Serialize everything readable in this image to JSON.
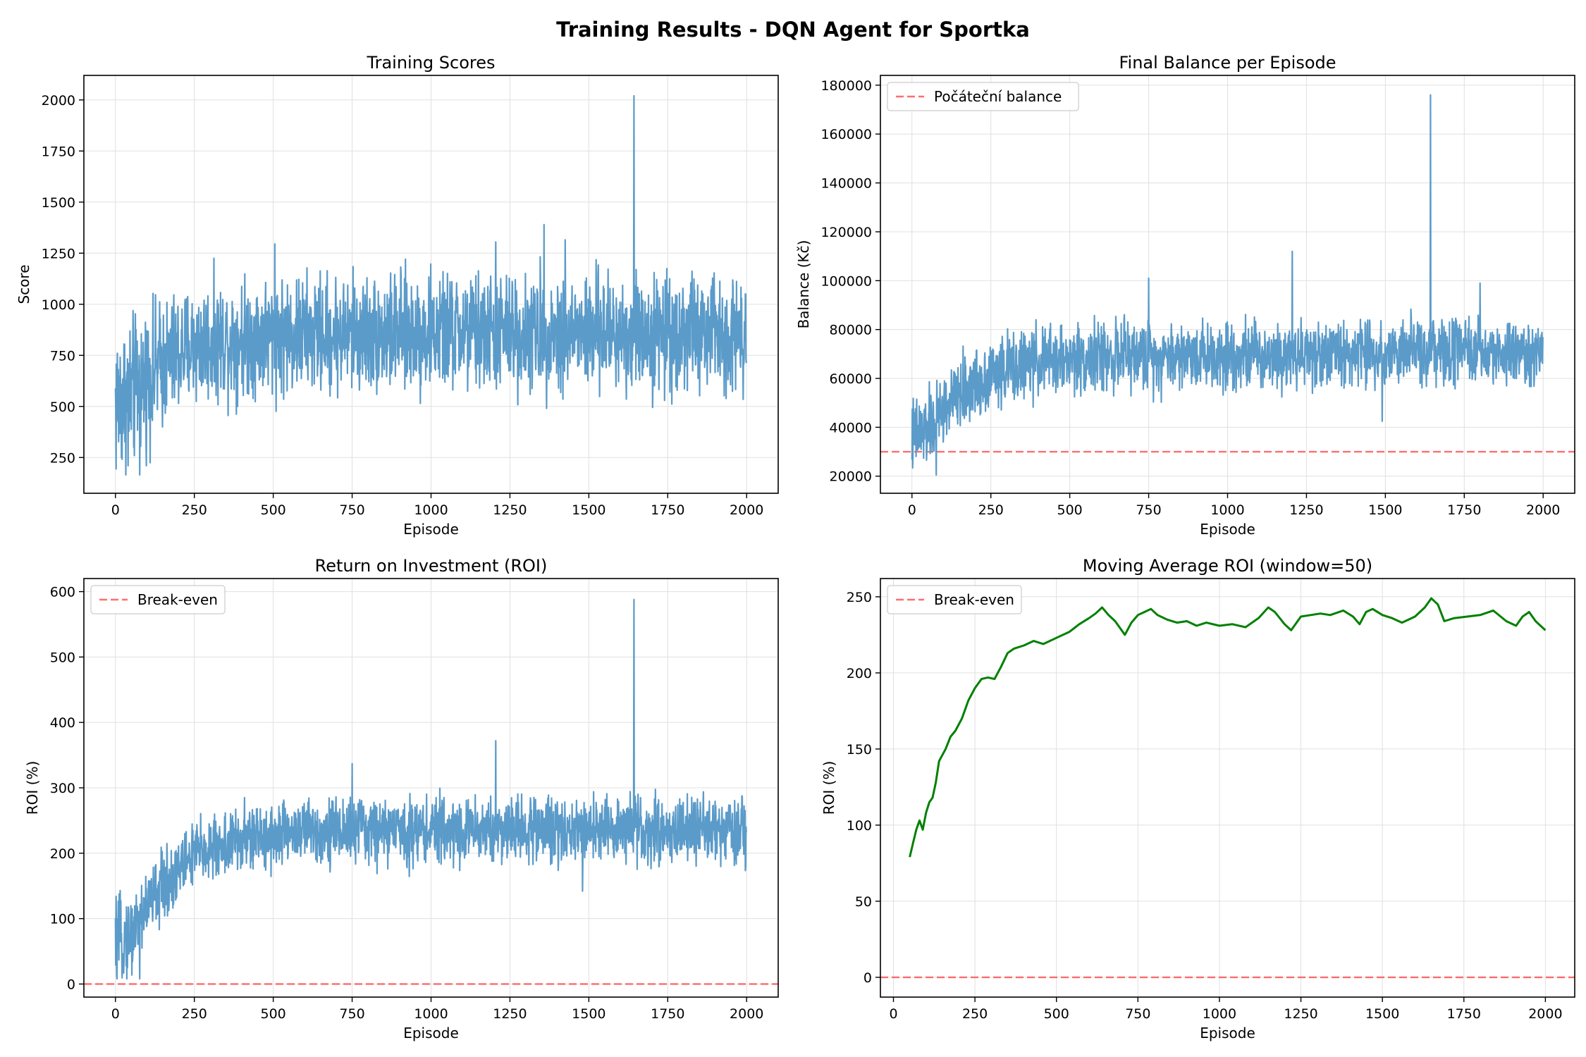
{
  "figure": {
    "title": "Training Results - DQN Agent for Sportka"
  },
  "colors": {
    "series": "#5b9bc9",
    "reference": "#ff5555",
    "moving_average": "#008000",
    "grid": "#e0e0e0"
  },
  "chart_data": [
    {
      "type": "line",
      "title": "Training Scores",
      "xlabel": "Episode",
      "ylabel": "Score",
      "xlim": [
        -100,
        2100
      ],
      "ylim": [
        75,
        2120
      ],
      "xticks": [
        0,
        250,
        500,
        750,
        1000,
        1250,
        1500,
        1750,
        2000
      ],
      "yticks": [
        250,
        500,
        750,
        1000,
        1250,
        1500,
        1750,
        2000
      ],
      "grid": true,
      "legend": null,
      "episodes": 2000,
      "series": [
        {
          "noisy": true,
          "trend": [
            [
              0,
              520
            ],
            [
              50,
              560
            ],
            [
              100,
              640
            ],
            [
              150,
              710
            ],
            [
              250,
              800
            ],
            [
              400,
              840
            ],
            [
              600,
              850
            ],
            [
              1000,
              860
            ],
            [
              1500,
              860
            ],
            [
              2000,
              860
            ]
          ],
          "spread": [
            [
              0,
              200
            ],
            [
              100,
              160
            ],
            [
              250,
              140
            ],
            [
              2000,
              140
            ]
          ],
          "min": 165,
          "max": 2020,
          "spikes": [
            [
              1643,
              2020
            ],
            [
              1358,
              1390
            ],
            [
              1205,
              1305
            ],
            [
              505,
              1295
            ],
            [
              1425,
              1315
            ],
            [
              77,
              165
            ],
            [
              40,
              210
            ]
          ]
        }
      ]
    },
    {
      "type": "line",
      "title": "Final Balance per Episode",
      "xlabel": "Episode",
      "ylabel": "Balance (Kč)",
      "xlim": [
        -100,
        2100
      ],
      "ylim": [
        13000,
        184000
      ],
      "xticks": [
        0,
        250,
        500,
        750,
        1000,
        1250,
        1500,
        1750,
        2000
      ],
      "yticks": [
        20000,
        40000,
        60000,
        80000,
        100000,
        120000,
        140000,
        160000,
        180000
      ],
      "grid": true,
      "legend": {
        "position": "upper left",
        "entries": [
          "Počáteční balance"
        ]
      },
      "reference_line": {
        "y": 30000,
        "label": "Počáteční balance"
      },
      "episodes": 2000,
      "series": [
        {
          "noisy": true,
          "trend": [
            [
              0,
              36000
            ],
            [
              50,
              39000
            ],
            [
              100,
              47000
            ],
            [
              150,
              53000
            ],
            [
              250,
              62000
            ],
            [
              400,
              67000
            ],
            [
              600,
              69000
            ],
            [
              1000,
              70000
            ],
            [
              1500,
              70500
            ],
            [
              2000,
              70000
            ]
          ],
          "spread": [
            [
              0,
              8000
            ],
            [
              100,
              7000
            ],
            [
              250,
              7000
            ],
            [
              2000,
              6500
            ]
          ],
          "min": 20000,
          "max": 176000,
          "spikes": [
            [
              1643,
              176000
            ],
            [
              1205,
              112000
            ],
            [
              750,
              101000
            ],
            [
              1800,
              99000
            ],
            [
              77,
              20500
            ],
            [
              1490,
              42500
            ]
          ]
        }
      ]
    },
    {
      "type": "line",
      "title": "Return on Investment (ROI)",
      "xlabel": "Episode",
      "ylabel": "ROI (%)",
      "xlim": [
        -100,
        2100
      ],
      "ylim": [
        -20,
        620
      ],
      "xticks": [
        0,
        250,
        500,
        750,
        1000,
        1250,
        1500,
        1750,
        2000
      ],
      "yticks": [
        0,
        100,
        200,
        300,
        400,
        500,
        600
      ],
      "grid": true,
      "legend": {
        "position": "upper left",
        "entries": [
          "Break-even"
        ]
      },
      "reference_line": {
        "y": 0,
        "label": "Break-even"
      },
      "episodes": 2000,
      "series": [
        {
          "noisy": true,
          "trend": [
            [
              0,
              60
            ],
            [
              50,
              75
            ],
            [
              100,
              120
            ],
            [
              150,
              150
            ],
            [
              250,
              200
            ],
            [
              400,
              220
            ],
            [
              600,
              235
            ],
            [
              1000,
              235
            ],
            [
              1500,
              238
            ],
            [
              2000,
              232
            ]
          ],
          "spread": [
            [
              0,
              30
            ],
            [
              100,
              28
            ],
            [
              250,
              25
            ],
            [
              2000,
              24
            ]
          ],
          "min": 8,
          "max": 588,
          "spikes": [
            [
              1643,
              588
            ],
            [
              1205,
              372
            ],
            [
              750,
              337
            ],
            [
              77,
              8
            ],
            [
              1480,
              142
            ]
          ]
        }
      ]
    },
    {
      "type": "line",
      "title": "Moving Average ROI (window=50)",
      "xlabel": "Episode",
      "ylabel": "ROI (%)",
      "xlim": [
        -40,
        2090
      ],
      "ylim": [
        -13,
        262
      ],
      "xticks": [
        0,
        250,
        500,
        750,
        1000,
        1250,
        1500,
        1750,
        2000
      ],
      "yticks": [
        0,
        50,
        100,
        150,
        200,
        250
      ],
      "grid": true,
      "legend": {
        "position": "upper left",
        "entries": [
          "Break-even"
        ]
      },
      "reference_line": {
        "y": 0,
        "label": "Break-even"
      },
      "series": [
        {
          "name": "",
          "points": [
            [
              50,
              79
            ],
            [
              60,
              88
            ],
            [
              70,
              97
            ],
            [
              80,
              103
            ],
            [
              90,
              97
            ],
            [
              100,
              108
            ],
            [
              110,
              115
            ],
            [
              120,
              118
            ],
            [
              130,
              128
            ],
            [
              140,
              142
            ],
            [
              160,
              150
            ],
            [
              175,
              158
            ],
            [
              190,
              162
            ],
            [
              210,
              170
            ],
            [
              230,
              182
            ],
            [
              250,
              190
            ],
            [
              270,
              196
            ],
            [
              290,
              197
            ],
            [
              310,
              196
            ],
            [
              330,
              204
            ],
            [
              350,
              213
            ],
            [
              370,
              216
            ],
            [
              400,
              218
            ],
            [
              430,
              221
            ],
            [
              460,
              219
            ],
            [
              500,
              223
            ],
            [
              540,
              227
            ],
            [
              570,
              232
            ],
            [
              600,
              236
            ],
            [
              620,
              239
            ],
            [
              640,
              243
            ],
            [
              660,
              238
            ],
            [
              680,
              234
            ],
            [
              700,
              228
            ],
            [
              710,
              225
            ],
            [
              730,
              233
            ],
            [
              750,
              238
            ],
            [
              770,
              240
            ],
            [
              790,
              242
            ],
            [
              810,
              238
            ],
            [
              840,
              235
            ],
            [
              870,
              233
            ],
            [
              900,
              234
            ],
            [
              930,
              231
            ],
            [
              960,
              233
            ],
            [
              1000,
              231
            ],
            [
              1040,
              232
            ],
            [
              1080,
              230
            ],
            [
              1120,
              236
            ],
            [
              1150,
              243
            ],
            [
              1170,
              240
            ],
            [
              1200,
              232
            ],
            [
              1220,
              228
            ],
            [
              1250,
              237
            ],
            [
              1280,
              238
            ],
            [
              1310,
              239
            ],
            [
              1340,
              238
            ],
            [
              1380,
              241
            ],
            [
              1410,
              237
            ],
            [
              1430,
              232
            ],
            [
              1450,
              240
            ],
            [
              1470,
              242
            ],
            [
              1500,
              238
            ],
            [
              1530,
              236
            ],
            [
              1560,
              233
            ],
            [
              1600,
              237
            ],
            [
              1630,
              243
            ],
            [
              1650,
              249
            ],
            [
              1670,
              245
            ],
            [
              1690,
              234
            ],
            [
              1720,
              236
            ],
            [
              1760,
              237
            ],
            [
              1800,
              238
            ],
            [
              1840,
              241
            ],
            [
              1880,
              234
            ],
            [
              1910,
              231
            ],
            [
              1930,
              237
            ],
            [
              1950,
              240
            ],
            [
              1970,
              234
            ],
            [
              2000,
              228
            ]
          ]
        }
      ]
    }
  ]
}
